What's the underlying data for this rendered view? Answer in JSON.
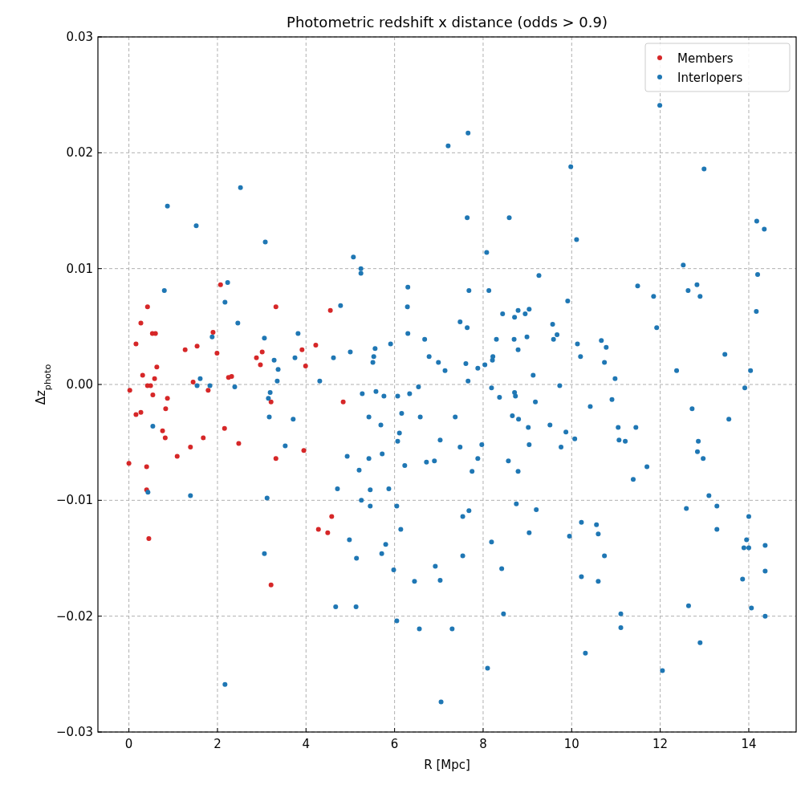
{
  "chart_data": {
    "type": "scatter",
    "title": "Photometric redshift x distance (odds > 0.9)",
    "xlabel": "R [Mpc]",
    "ylabel": "Δz$_{photo}$",
    "xlim": [
      -0.7,
      15.07
    ],
    "ylim": [
      -0.03,
      0.03
    ],
    "xticks": [
      0,
      2,
      4,
      6,
      8,
      10,
      12,
      14
    ],
    "yticks": [
      {
        "value": -0.03,
        "label": "−0.03"
      },
      {
        "value": -0.02,
        "label": "−0.02"
      },
      {
        "value": -0.01,
        "label": "−0.01"
      },
      {
        "value": 0,
        "label": "0.00"
      },
      {
        "value": 0.01,
        "label": "0.01"
      },
      {
        "value": 0.02,
        "label": "0.02"
      },
      {
        "value": 0.03,
        "label": "0.03"
      }
    ],
    "grid": true,
    "legend": "top right",
    "marker": "circle",
    "series": [
      {
        "name": "Members",
        "color": "#d62728",
        "x": [
          0.02,
          0.0,
          0.16,
          0.16,
          0.27,
          0.27,
          0.31,
          0.42,
          0.42,
          0.49,
          0.4,
          0.4,
          0.45,
          0.53,
          0.6,
          0.54,
          0.58,
          0.63,
          0.76,
          0.82,
          0.83,
          0.87,
          1.09,
          1.27,
          1.39,
          1.45,
          1.54,
          1.68,
          1.79,
          1.9,
          1.99,
          2.07,
          2.16,
          2.25,
          2.32,
          2.48,
          2.88,
          2.97,
          3.01,
          3.21,
          3.32,
          3.32,
          3.21,
          3.91,
          3.99,
          3.95,
          4.22,
          4.28,
          4.49,
          4.55,
          4.58,
          4.84
        ],
        "values": [
          -0.0005,
          -0.0068,
          0.0035,
          -0.0026,
          0.0053,
          -0.0024,
          0.0008,
          0.0067,
          -0.0001,
          -0.0001,
          -0.0071,
          -0.0091,
          -0.0133,
          0.0044,
          0.0044,
          -0.0009,
          0.0005,
          0.0015,
          -0.004,
          -0.0046,
          -0.0021,
          -0.0012,
          -0.0062,
          0.003,
          -0.0054,
          0.0002,
          0.0033,
          -0.0046,
          -0.0005,
          0.0045,
          0.0027,
          0.0086,
          -0.0038,
          0.0006,
          0.0007,
          -0.0051,
          0.0023,
          0.0017,
          0.0028,
          -0.0015,
          0.0067,
          -0.0064,
          -0.0173,
          0.003,
          0.0016,
          -0.0057,
          0.0034,
          -0.0125,
          -0.0128,
          0.0064,
          -0.0114,
          -0.0015
        ]
      },
      {
        "name": "Interlopers",
        "color": "#1f77b4",
        "x": [
          0.54,
          0.43,
          0.8,
          0.87,
          1.39,
          1.52,
          1.54,
          1.61,
          1.83,
          1.88,
          2.17,
          2.23,
          2.17,
          2.39,
          2.46,
          2.52,
          3.06,
          3.08,
          3.06,
          3.12,
          3.15,
          3.17,
          3.19,
          3.28,
          3.37,
          3.35,
          3.53,
          3.71,
          3.75,
          3.82,
          4.31,
          4.62,
          4.71,
          4.67,
          4.78,
          4.93,
          4.98,
          5.0,
          5.07,
          5.13,
          5.14,
          5.2,
          5.24,
          5.24,
          5.27,
          5.25,
          5.42,
          5.42,
          5.45,
          5.45,
          5.51,
          5.53,
          5.56,
          5.58,
          5.69,
          5.72,
          5.71,
          5.76,
          5.8,
          5.87,
          5.91,
          5.98,
          6.05,
          6.05,
          6.07,
          6.07,
          6.11,
          6.16,
          6.14,
          6.23,
          6.29,
          6.3,
          6.3,
          6.34,
          6.45,
          6.54,
          6.58,
          6.56,
          6.68,
          6.72,
          6.78,
          6.9,
          6.92,
          6.99,
          7.03,
          7.03,
          7.05,
          7.14,
          7.21,
          7.3,
          7.37,
          7.48,
          7.48,
          7.54,
          7.54,
          7.61,
          7.64,
          7.64,
          7.66,
          7.66,
          7.68,
          7.68,
          7.75,
          7.88,
          7.88,
          7.97,
          8.04,
          8.08,
          8.1,
          8.13,
          8.19,
          8.19,
          8.21,
          8.22,
          8.3,
          8.37,
          8.42,
          8.44,
          8.46,
          8.57,
          8.59,
          8.66,
          8.7,
          8.71,
          8.71,
          8.73,
          8.75,
          8.79,
          8.79,
          8.8,
          8.79,
          8.95,
          8.99,
          9.02,
          9.04,
          9.04,
          9.04,
          9.13,
          9.18,
          9.2,
          9.26,
          9.51,
          9.57,
          9.59,
          9.67,
          9.73,
          9.76,
          9.87,
          9.91,
          9.95,
          9.98,
          10.07,
          10.11,
          10.13,
          10.2,
          10.22,
          10.22,
          10.31,
          10.42,
          10.56,
          10.6,
          10.6,
          10.67,
          10.74,
          10.78,
          10.74,
          10.91,
          10.98,
          11.05,
          11.07,
          11.11,
          11.11,
          11.21,
          11.39,
          11.45,
          11.49,
          11.7,
          11.85,
          11.92,
          11.99,
          12.05,
          12.37,
          12.52,
          12.59,
          12.63,
          12.64,
          12.72,
          12.83,
          12.86,
          12.84,
          12.9,
          12.9,
          12.97,
          12.99,
          13.1,
          13.28,
          13.28,
          13.46,
          13.55,
          13.86,
          13.89,
          13.91,
          13.95,
          14.0,
          14.0,
          14.04,
          14.06,
          14.17,
          14.18,
          14.2,
          14.35,
          14.37,
          14.37,
          14.37
        ],
        "values": [
          -0.0036,
          -0.0093,
          0.0081,
          0.0154,
          -0.0096,
          0.0137,
          -0.0001,
          0.0005,
          -0.0001,
          0.0041,
          0.0071,
          0.0088,
          -0.0259,
          -0.0002,
          0.0053,
          0.017,
          0.004,
          0.0123,
          -0.0146,
          -0.0098,
          -0.0012,
          -0.0028,
          -0.0007,
          0.0021,
          0.0013,
          0.0003,
          -0.0053,
          -0.003,
          0.0023,
          0.0044,
          0.0003,
          0.0023,
          -0.009,
          -0.0192,
          0.0068,
          -0.0062,
          -0.0134,
          0.0028,
          0.011,
          -0.0192,
          -0.015,
          -0.0074,
          0.01,
          0.0096,
          -0.0008,
          -0.01,
          -0.0028,
          -0.0064,
          -0.0091,
          -0.0105,
          0.0019,
          0.0024,
          0.0031,
          -0.0006,
          -0.0035,
          -0.006,
          -0.0146,
          -0.001,
          -0.0138,
          -0.009,
          0.0035,
          -0.016,
          -0.0204,
          -0.0105,
          -0.001,
          -0.0049,
          -0.0042,
          -0.0025,
          -0.0125,
          -0.007,
          0.0067,
          0.0084,
          0.0044,
          -0.0008,
          -0.017,
          -0.0002,
          -0.0028,
          -0.0211,
          0.0039,
          -0.0067,
          0.0024,
          -0.0066,
          -0.0157,
          0.0019,
          -0.0048,
          -0.0169,
          -0.0274,
          0.0012,
          0.0206,
          -0.0211,
          -0.0028,
          0.0054,
          -0.0054,
          -0.0114,
          -0.0148,
          0.0018,
          0.0144,
          0.0049,
          0.0003,
          0.0217,
          0.0081,
          -0.0109,
          -0.0075,
          0.0014,
          -0.0064,
          -0.0052,
          0.0017,
          0.0114,
          -0.0245,
          0.0081,
          -0.0003,
          -0.0136,
          0.0021,
          0.0024,
          0.0039,
          -0.0011,
          -0.0159,
          0.0061,
          -0.0198,
          -0.0066,
          0.0144,
          -0.0027,
          0.0039,
          -0.0007,
          0.0058,
          -0.001,
          -0.0103,
          0.003,
          -0.0075,
          -0.003,
          0.0064,
          0.0061,
          0.0041,
          -0.0037,
          0.0065,
          -0.0052,
          -0.0128,
          0.0008,
          -0.0015,
          -0.0108,
          0.0094,
          -0.0035,
          0.0052,
          0.0039,
          0.0043,
          -0.0001,
          -0.0054,
          -0.0041,
          0.0072,
          -0.0131,
          0.0188,
          -0.0047,
          0.0125,
          0.0035,
          0.0024,
          -0.0119,
          -0.0166,
          -0.0232,
          -0.0019,
          -0.0121,
          -0.0129,
          -0.017,
          0.0038,
          0.0019,
          0.0032,
          -0.0148,
          -0.0013,
          0.0005,
          -0.0037,
          -0.0048,
          -0.0198,
          -0.021,
          -0.0049,
          -0.0082,
          -0.0037,
          0.0085,
          -0.0071,
          0.0076,
          0.0049,
          0.0241,
          -0.0247,
          0.0012,
          0.0103,
          -0.0107,
          0.0081,
          -0.0191,
          -0.0021,
          0.0086,
          -0.0049,
          -0.0058,
          0.0076,
          -0.0223,
          -0.0064,
          0.0186,
          -0.0096,
          -0.0125,
          -0.0105,
          0.0026,
          -0.003,
          -0.0168,
          -0.0141,
          -0.0003,
          -0.0134,
          -0.0114,
          -0.0141,
          0.0012,
          -0.0193,
          0.0063,
          0.0141,
          0.0095,
          0.0134,
          -0.0139,
          -0.0161,
          -0.02
        ]
      }
    ]
  }
}
